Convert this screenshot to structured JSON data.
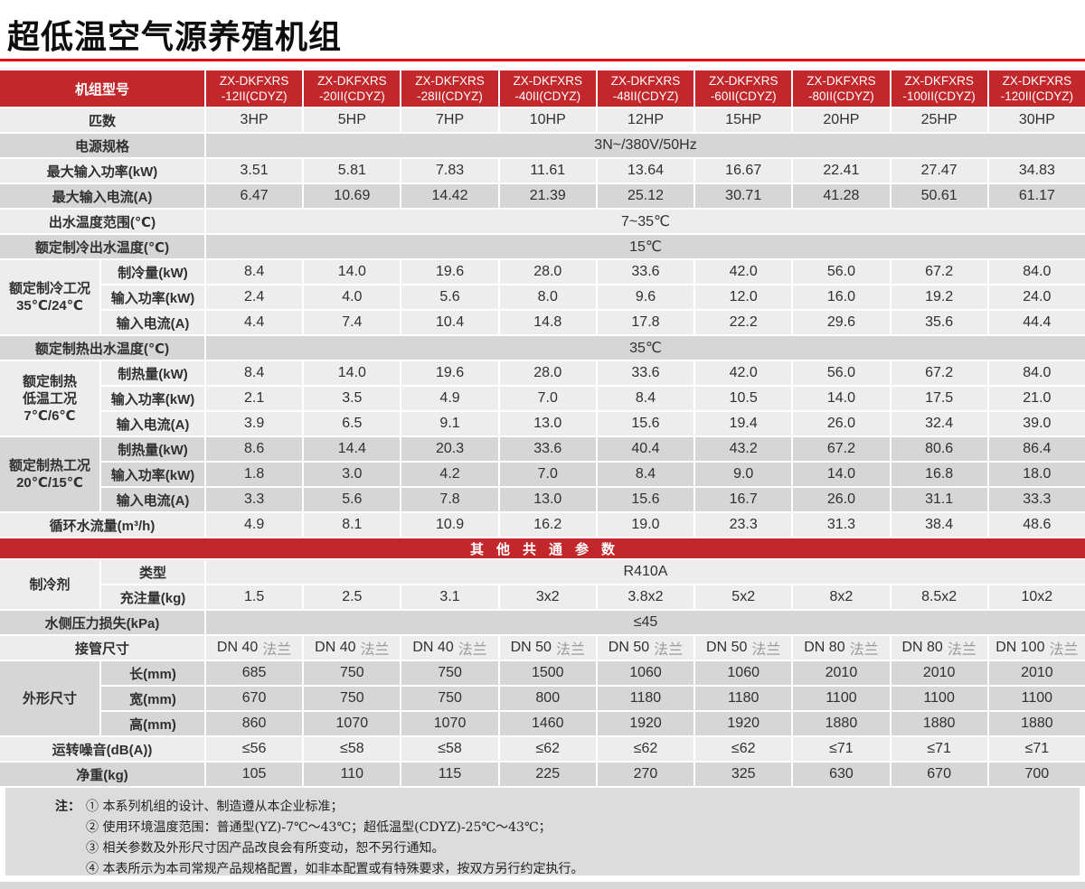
{
  "title": "超低温空气源养殖机组",
  "colors": {
    "header_red": "#c2272c",
    "rule_red": "#e60012",
    "row_light": "#ededed",
    "row_dark": "#d6d6d6",
    "notes_bg": "#dcdcdc",
    "bottom_strip": "#d8d8d8",
    "text": "#303030",
    "flange_gray": "#9a9a9a"
  },
  "table": {
    "header": {
      "label": "机组型号",
      "models": [
        {
          "line1": "ZX-DKFXRS",
          "line2": "-12II(CDYZ)"
        },
        {
          "line1": "ZX-DKFXRS",
          "line2": "-20II(CDYZ)"
        },
        {
          "line1": "ZX-DKFXRS",
          "line2": "-28II(CDYZ)"
        },
        {
          "line1": "ZX-DKFXRS",
          "line2": "-40II(CDYZ)"
        },
        {
          "line1": "ZX-DKFXRS",
          "line2": "-48II(CDYZ)"
        },
        {
          "line1": "ZX-DKFXRS",
          "line2": "-60II(CDYZ)"
        },
        {
          "line1": "ZX-DKFXRS",
          "line2": "-80II(CDYZ)"
        },
        {
          "line1": "ZX-DKFXRS",
          "line2": "-100II(CDYZ)"
        },
        {
          "line1": "ZX-DKFXRS",
          "line2": "-120II(CDYZ)"
        }
      ]
    },
    "sections": [
      {
        "kind": "row",
        "shade": "light",
        "label": "匹数",
        "values": [
          "3HP",
          "5HP",
          "7HP",
          "10HP",
          "12HP",
          "15HP",
          "20HP",
          "25HP",
          "30HP"
        ]
      },
      {
        "kind": "span",
        "shade": "dark",
        "label": "电源规格",
        "value": "3N~/380V/50Hz"
      },
      {
        "kind": "row",
        "shade": "light",
        "label": "最大输入功率(kW)",
        "values": [
          "3.51",
          "5.81",
          "7.83",
          "11.61",
          "13.64",
          "16.67",
          "22.41",
          "27.47",
          "34.83"
        ]
      },
      {
        "kind": "row",
        "shade": "dark",
        "label": "最大输入电流(A)",
        "values": [
          "6.47",
          "10.69",
          "14.42",
          "21.39",
          "25.12",
          "30.71",
          "41.28",
          "50.61",
          "61.17"
        ]
      },
      {
        "kind": "span",
        "shade": "light",
        "label": "出水温度范围(℃)",
        "value": "7~35℃"
      },
      {
        "kind": "span",
        "shade": "dark",
        "label": "额定制冷出水温度(℃)",
        "value": "15℃"
      },
      {
        "kind": "group",
        "shade": "light",
        "label_lines": [
          "额定制冷工况",
          "35℃/24℃"
        ],
        "rows": [
          {
            "label": "制冷量(kW)",
            "values": [
              "8.4",
              "14.0",
              "19.6",
              "28.0",
              "33.6",
              "42.0",
              "56.0",
              "67.2",
              "84.0"
            ]
          },
          {
            "label": "输入功率(kW)",
            "values": [
              "2.4",
              "4.0",
              "5.6",
              "8.0",
              "9.6",
              "12.0",
              "16.0",
              "19.2",
              "24.0"
            ]
          },
          {
            "label": "输入电流(A)",
            "values": [
              "4.4",
              "7.4",
              "10.4",
              "14.8",
              "17.8",
              "22.2",
              "29.6",
              "35.6",
              "44.4"
            ]
          }
        ]
      },
      {
        "kind": "span",
        "shade": "dark",
        "label": "额定制热出水温度(℃)",
        "value": "35℃"
      },
      {
        "kind": "group",
        "shade": "light",
        "label_lines": [
          "额定制热",
          "低温工况",
          "7℃/6℃"
        ],
        "rows": [
          {
            "label": "制热量(kW)",
            "values": [
              "8.4",
              "14.0",
              "19.6",
              "28.0",
              "33.6",
              "42.0",
              "56.0",
              "67.2",
              "84.0"
            ]
          },
          {
            "label": "输入功率(kW)",
            "values": [
              "2.1",
              "3.5",
              "4.9",
              "7.0",
              "8.4",
              "10.5",
              "14.0",
              "17.5",
              "21.0"
            ]
          },
          {
            "label": "输入电流(A)",
            "values": [
              "3.9",
              "6.5",
              "9.1",
              "13.0",
              "15.6",
              "19.4",
              "26.0",
              "32.4",
              "39.0"
            ]
          }
        ]
      },
      {
        "kind": "group",
        "shade": "dark",
        "label_lines": [
          "额定制热工况",
          "20℃/15℃"
        ],
        "rows": [
          {
            "label": "制热量(kW)",
            "values": [
              "8.6",
              "14.4",
              "20.3",
              "33.6",
              "40.4",
              "43.2",
              "67.2",
              "80.6",
              "86.4"
            ]
          },
          {
            "label": "输入功率(kW)",
            "values": [
              "1.8",
              "3.0",
              "4.2",
              "7.0",
              "8.4",
              "9.0",
              "14.0",
              "16.8",
              "18.0"
            ]
          },
          {
            "label": "输入电流(A)",
            "values": [
              "3.3",
              "5.6",
              "7.8",
              "13.0",
              "15.6",
              "16.7",
              "26.0",
              "31.1",
              "33.3"
            ]
          }
        ]
      },
      {
        "kind": "row",
        "shade": "light",
        "label": "循环水流量(m³/h)",
        "values": [
          "4.9",
          "8.1",
          "10.9",
          "16.2",
          "19.0",
          "23.3",
          "31.3",
          "38.4",
          "48.6"
        ]
      },
      {
        "kind": "banner",
        "text": "其他共通参数"
      },
      {
        "kind": "group",
        "shade": "light",
        "label_lines": [
          "制冷剂"
        ],
        "rows": [
          {
            "label": "类型",
            "span": "R410A"
          },
          {
            "label": "充注量(kg)",
            "values": [
              "1.5",
              "2.5",
              "3.1",
              "3x2",
              "3.8x2",
              "5x2",
              "8x2",
              "8.5x2",
              "10x2"
            ]
          }
        ]
      },
      {
        "kind": "span",
        "shade": "dark",
        "label": "水侧压力损失(kPa)",
        "value": "≤45"
      },
      {
        "kind": "row",
        "shade": "light",
        "label": "接管尺寸",
        "values": [
          {
            "dn": "DN 40",
            "fl": "法兰"
          },
          {
            "dn": "DN 40",
            "fl": "法兰"
          },
          {
            "dn": "DN 40",
            "fl": "法兰"
          },
          {
            "dn": "DN 50",
            "fl": "法兰"
          },
          {
            "dn": "DN 50",
            "fl": "法兰"
          },
          {
            "dn": "DN 50",
            "fl": "法兰"
          },
          {
            "dn": "DN 80",
            "fl": "法兰"
          },
          {
            "dn": "DN 80",
            "fl": "法兰"
          },
          {
            "dn": "DN 100",
            "fl": "法兰"
          }
        ]
      },
      {
        "kind": "group",
        "shade": "dark",
        "label_lines": [
          "外形尺寸"
        ],
        "rows": [
          {
            "label": "长(mm)",
            "values": [
              "685",
              "750",
              "750",
              "1500",
              "1060",
              "1060",
              "2010",
              "2010",
              "2010"
            ]
          },
          {
            "label": "宽(mm)",
            "values": [
              "670",
              "750",
              "750",
              "800",
              "1180",
              "1180",
              "1100",
              "1100",
              "1100"
            ]
          },
          {
            "label": "高(mm)",
            "values": [
              "860",
              "1070",
              "1070",
              "1460",
              "1920",
              "1920",
              "1880",
              "1880",
              "1880"
            ]
          }
        ]
      },
      {
        "kind": "row",
        "shade": "light",
        "label": "运转噪音(dB(A))",
        "values": [
          "≤56",
          "≤58",
          "≤58",
          "≤62",
          "≤62",
          "≤62",
          "≤71",
          "≤71",
          "≤71"
        ]
      },
      {
        "kind": "row",
        "shade": "dark",
        "label": "净重(kg)",
        "values": [
          "105",
          "110",
          "115",
          "225",
          "270",
          "325",
          "630",
          "670",
          "700"
        ]
      }
    ]
  },
  "notes": {
    "prefix": "注：",
    "items": [
      "① 本系列机组的设计、制造遵从本企业标准；",
      "② 使用环境温度范围：普通型(YZ)-7℃～43℃；超低温型(CDYZ)-25℃～43℃；",
      "③ 相关参数及外形尺寸因产品改良会有所变动，恕不另行通知。",
      "④ 本表所示为本司常规产品规格配置，如非本配置或有特殊要求，按双方另行约定执行。"
    ]
  }
}
